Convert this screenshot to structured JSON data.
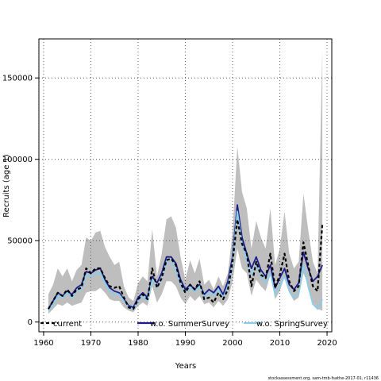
{
  "chart_data": {
    "type": "line",
    "title": "",
    "xlabel": "Years",
    "ylabel": "Recruits (age 1)",
    "xlim": [
      1959,
      2021
    ],
    "ylim": [
      -6000,
      174000
    ],
    "x_ticks": [
      1960,
      1970,
      1980,
      1990,
      2000,
      2010,
      2020
    ],
    "y_ticks": [
      0,
      50000,
      100000,
      150000
    ],
    "grid": true,
    "legend_position": "bottom",
    "x": [
      1961,
      1962,
      1963,
      1964,
      1965,
      1966,
      1967,
      1968,
      1969,
      1970,
      1971,
      1972,
      1973,
      1974,
      1975,
      1976,
      1977,
      1978,
      1979,
      1980,
      1981,
      1982,
      1983,
      1984,
      1985,
      1986,
      1987,
      1988,
      1989,
      1990,
      1991,
      1992,
      1993,
      1994,
      1995,
      1996,
      1997,
      1998,
      1999,
      2000,
      2001,
      2002,
      2003,
      2004,
      2005,
      2006,
      2007,
      2008,
      2009,
      2010,
      2011,
      2012,
      2013,
      2014,
      2015,
      2016,
      2017,
      2018,
      2019
    ],
    "band": {
      "name": "current uncertainty",
      "color": "#bebebe",
      "upper": [
        17000,
        23000,
        33000,
        28000,
        33000,
        25000,
        32000,
        35000,
        52000,
        50000,
        55000,
        56000,
        46000,
        40000,
        35000,
        37000,
        22000,
        15000,
        13000,
        24000,
        28000,
        25000,
        57000,
        28000,
        42000,
        63000,
        65000,
        58000,
        40000,
        26000,
        38000,
        30000,
        39000,
        23000,
        26000,
        20000,
        28000,
        22000,
        30000,
        55000,
        108000,
        80000,
        70000,
        45000,
        62000,
        52000,
        45000,
        70000,
        35000,
        45000,
        68000,
        42000,
        33000,
        37000,
        79000,
        57000,
        37000,
        30000,
        168000
      ],
      "lower": [
        5000,
        8000,
        11000,
        10000,
        12000,
        10000,
        11000,
        12000,
        18000,
        19000,
        19000,
        21000,
        18000,
        14000,
        13000,
        13000,
        9000,
        7000,
        6000,
        10000,
        12000,
        10000,
        22000,
        12000,
        17000,
        25000,
        25000,
        22000,
        15000,
        11000,
        16000,
        13000,
        16000,
        11000,
        12000,
        9000,
        13000,
        10000,
        14000,
        25000,
        45000,
        33000,
        30000,
        16000,
        26000,
        22000,
        19000,
        29000,
        14000,
        19000,
        28000,
        18000,
        13000,
        15000,
        30000,
        23000,
        12000,
        8000,
        7000
      ]
    },
    "series": [
      {
        "name": "current",
        "color": "#000000",
        "style": "dashed",
        "values": [
          8000,
          13000,
          18000,
          16000,
          20000,
          16000,
          20000,
          21000,
          33000,
          30000,
          33000,
          33000,
          27000,
          22000,
          21000,
          22000,
          15000,
          9000,
          8000,
          14000,
          17000,
          14000,
          33000,
          21000,
          27000,
          38000,
          39000,
          35000,
          24000,
          18000,
          23000,
          20000,
          25000,
          14000,
          15000,
          12000,
          18000,
          14000,
          20000,
          37000,
          63000,
          48000,
          42000,
          22000,
          37000,
          29000,
          27000,
          42000,
          21000,
          29000,
          42000,
          25000,
          19000,
          22000,
          49000,
          35000,
          22000,
          19000,
          60000
        ]
      },
      {
        "name": "w.o. SummerSurvey",
        "color": "#1c1c8c",
        "style": "solid",
        "values": [
          8000,
          13000,
          18000,
          16000,
          19000,
          17000,
          21000,
          23000,
          31000,
          30000,
          32000,
          33000,
          26000,
          21000,
          19000,
          18000,
          14000,
          10000,
          9000,
          15000,
          18000,
          15000,
          28000,
          24000,
          30000,
          40000,
          40000,
          36000,
          26000,
          20000,
          23000,
          20000,
          23000,
          17000,
          20000,
          18000,
          22000,
          17000,
          25000,
          40000,
          72000,
          52000,
          42000,
          33000,
          40000,
          32000,
          28000,
          35000,
          21000,
          27000,
          33000,
          23000,
          20000,
          24000,
          43000,
          33000,
          25000,
          28000,
          35000
        ]
      },
      {
        "name": "w.o. SpringSurvey",
        "color": "#87ceeb",
        "style": "solid",
        "values": [
          7000,
          11000,
          16000,
          15000,
          18000,
          15000,
          19000,
          20000,
          29000,
          28000,
          30000,
          30000,
          24000,
          19000,
          17000,
          17000,
          13000,
          9000,
          8000,
          13000,
          16000,
          13000,
          26000,
          21000,
          27000,
          37000,
          37000,
          32000,
          23000,
          18000,
          21000,
          19000,
          22000,
          15000,
          18000,
          16000,
          20000,
          15000,
          22000,
          37000,
          68000,
          48000,
          38000,
          29000,
          36000,
          28000,
          24000,
          30000,
          17000,
          22000,
          28000,
          19000,
          15000,
          18000,
          35000,
          22000,
          11000,
          8000,
          14000
        ]
      }
    ]
  },
  "footnote": "stockassessment.org, sam-tmb-fsathe-2017-01, r11436"
}
